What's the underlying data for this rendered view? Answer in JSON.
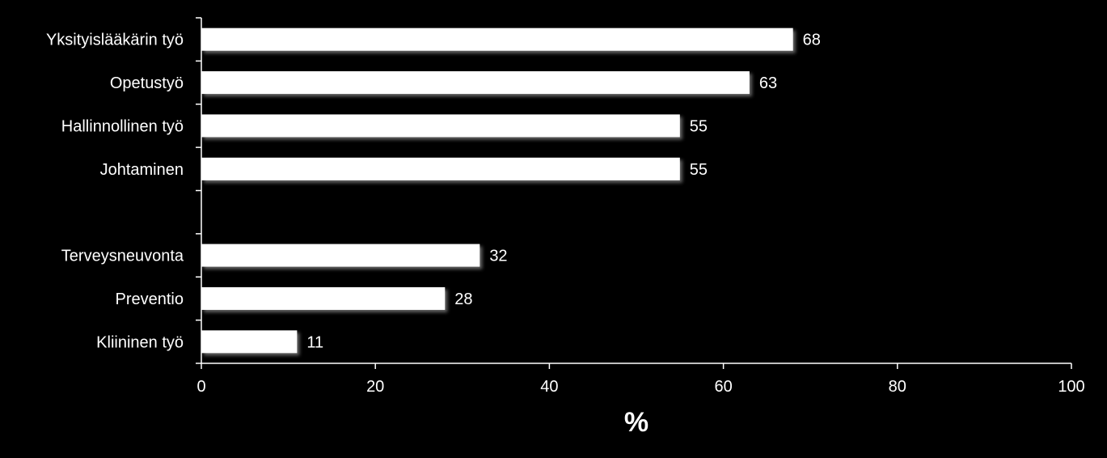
{
  "chart_data": {
    "type": "bar",
    "orientation": "horizontal",
    "categories": [
      "Yksityislääkärin työ",
      "Opetustyö",
      "Hallinnollinen työ",
      "Johtaminen",
      "",
      "Terveysneuvonta",
      "Preventio",
      "Kliininen työ"
    ],
    "values": [
      68,
      63,
      55,
      55,
      null,
      32,
      28,
      11
    ],
    "value_labels": [
      "68",
      "63",
      "55",
      "55",
      "",
      "32",
      "28",
      "11"
    ],
    "xlabel": "%",
    "xlim": [
      0,
      100
    ],
    "xticks": [
      0,
      20,
      40,
      60,
      80,
      100
    ],
    "xtick_labels": [
      "0",
      "20",
      "40",
      "60",
      "80",
      "100"
    ],
    "grid": false,
    "bar_color": "#ffffff",
    "background_color": "#000000",
    "text_color": "#ffffff"
  }
}
